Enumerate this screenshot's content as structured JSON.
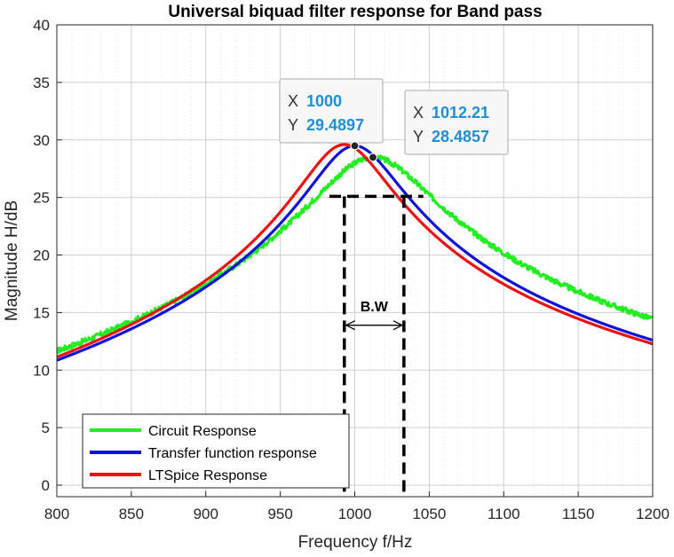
{
  "chart_data": {
    "type": "line",
    "title": "Universal biquad filter response for Band pass",
    "xlabel": "Frequency f/Hz",
    "ylabel": "Magnitude H/dB",
    "xlim": [
      800,
      1200
    ],
    "ylim": [
      -1,
      40
    ],
    "xticks": [
      800,
      850,
      900,
      950,
      1000,
      1050,
      1100,
      1150,
      1200
    ],
    "yticks": [
      0,
      5,
      10,
      15,
      20,
      25,
      30,
      35,
      40
    ],
    "grid": "major and minor dotted",
    "legend_position": "bottom-left",
    "series": [
      {
        "name": "Circuit Response",
        "color": "#22ee22",
        "f0": 1012.21,
        "peak": 28.4857,
        "bw": 70
      },
      {
        "name": "Transfer function response",
        "color": "#1010dd",
        "f0": 1000,
        "peak": 29.4897,
        "bw": 53
      },
      {
        "name": "LTSpice Response",
        "color": "#ee1111",
        "f0": 993,
        "peak": 29.6,
        "bw": 52
      }
    ],
    "datatips": [
      {
        "x_key": "X",
        "x_value": "1000",
        "y_key": "Y",
        "y_value": "29.4897",
        "x": 1000,
        "y": 29.4897
      },
      {
        "x_key": "X",
        "x_value": "1012.21",
        "y_key": "Y",
        "y_value": "28.4857",
        "x": 1012.21,
        "y": 28.4857
      }
    ],
    "bandwidth_annotation": {
      "label": "B.W",
      "f_low": 993,
      "f_high": 1033,
      "level": 25.1
    }
  }
}
